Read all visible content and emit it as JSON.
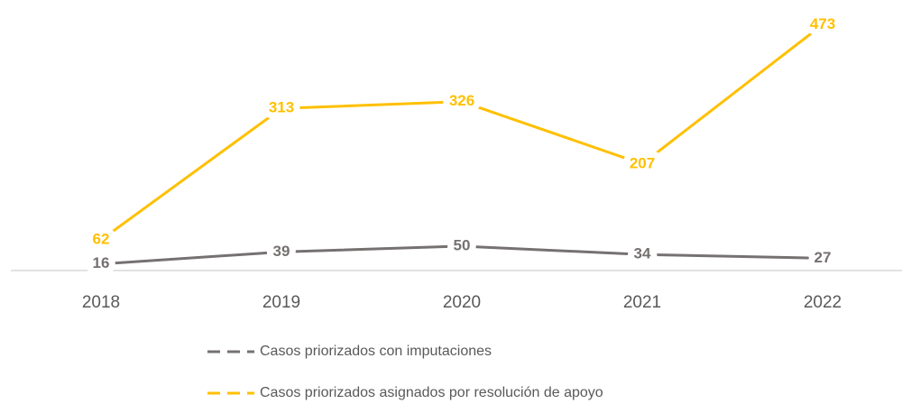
{
  "chart_data": {
    "type": "line",
    "categories": [
      "2018",
      "2019",
      "2020",
      "2021",
      "2022"
    ],
    "series": [
      {
        "name": "Casos priorizados con imputaciones",
        "color": "#767171",
        "values": [
          16,
          39,
          50,
          34,
          27
        ]
      },
      {
        "name": "Casos priorizados asignados por resolución de apoyo",
        "color": "#FFC000",
        "values": [
          62,
          313,
          326,
          207,
          473
        ]
      }
    ],
    "ylim": [
      0,
      520
    ],
    "grid": false
  }
}
